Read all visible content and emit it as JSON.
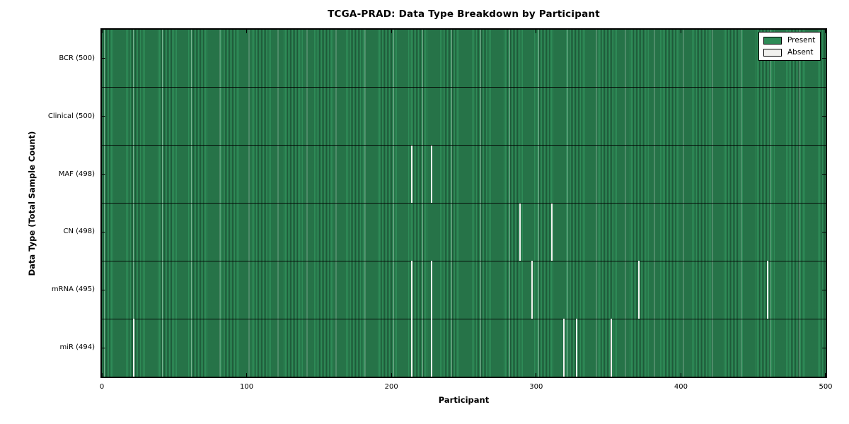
{
  "chart_data": {
    "type": "heatmap",
    "title": "TCGA-PRAD: Data Type Breakdown by Participant",
    "xlabel": "Participant",
    "ylabel": "Data Type (Total Sample Count)",
    "x_range": [
      0,
      500
    ],
    "x_ticks": [
      0,
      100,
      200,
      300,
      400,
      500
    ],
    "participants_per_row": 500,
    "grid": false,
    "legend_position": "upper right",
    "legend": [
      {
        "label": "Present",
        "color": "#2e8b57"
      },
      {
        "label": "Absent",
        "color": "#f1f1ee"
      }
    ],
    "rows": [
      {
        "data_type": "BCR",
        "label": "BCR (500)",
        "total_samples": 500,
        "absent_participants": []
      },
      {
        "data_type": "Clinical",
        "label": "Clinical (500)",
        "total_samples": 500,
        "absent_participants": []
      },
      {
        "data_type": "MAF",
        "label": "MAF (498)",
        "total_samples": 498,
        "absent_participants": [
          214,
          228
        ]
      },
      {
        "data_type": "CN",
        "label": "CN (498)",
        "total_samples": 498,
        "absent_participants": [
          289,
          311
        ]
      },
      {
        "data_type": "mRNA",
        "label": "mRNA (495)",
        "total_samples": 495,
        "absent_participants": [
          214,
          228,
          297,
          371,
          460
        ]
      },
      {
        "data_type": "miR",
        "label": "miR (494)",
        "total_samples": 494,
        "absent_participants": [
          22,
          214,
          228,
          319,
          328,
          352
        ]
      }
    ]
  },
  "colors": {
    "present": "#2e8b57",
    "absent": "#f1f1ee",
    "bar_edge": "rgba(0,0,0,0.35)",
    "moire_light_line": "rgba(214,240,224,0.48)",
    "frame": "#000000",
    "background": "#ffffff"
  }
}
